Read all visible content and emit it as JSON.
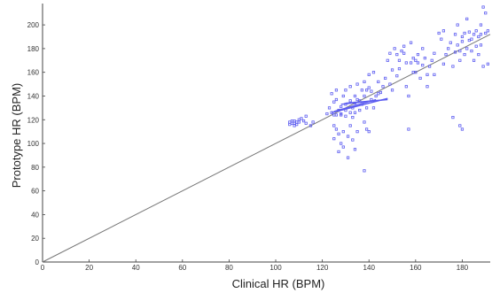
{
  "chart_data": {
    "type": "scatter",
    "xlabel": "Clinical HR (BPM)",
    "ylabel": "Prototype HR (BPM)",
    "xlim": [
      0,
      192
    ],
    "ylim": [
      0,
      218
    ],
    "xticks": [
      0,
      20,
      40,
      60,
      80,
      100,
      120,
      140,
      160,
      180
    ],
    "yticks": [
      0,
      20,
      40,
      60,
      80,
      100,
      120,
      140,
      160,
      180,
      200
    ],
    "grid": false,
    "marker_color": "#5c5cf0",
    "line_color": "#777777",
    "reference_line": {
      "from": [
        0,
        0
      ],
      "to": [
        192,
        192
      ]
    },
    "series": [
      {
        "points": [
          [
            106,
            116
          ],
          [
            106,
            118
          ],
          [
            107,
            117
          ],
          [
            107,
            119
          ],
          [
            108,
            115
          ],
          [
            108,
            117
          ],
          [
            108,
            119
          ],
          [
            109,
            116
          ],
          [
            109,
            118
          ],
          [
            110,
            118
          ],
          [
            110,
            120
          ],
          [
            111,
            121
          ],
          [
            112,
            119
          ],
          [
            113,
            117
          ],
          [
            113,
            123
          ],
          [
            115,
            115
          ],
          [
            116,
            118
          ],
          [
            122,
            125
          ],
          [
            123,
            130
          ],
          [
            124,
            142
          ],
          [
            124,
            126
          ],
          [
            125,
            124
          ],
          [
            125,
            135
          ],
          [
            125,
            115
          ],
          [
            125,
            104
          ],
          [
            126,
            124
          ],
          [
            126,
            137
          ],
          [
            126,
            112
          ],
          [
            126,
            145
          ],
          [
            127,
            93
          ],
          [
            127,
            108
          ],
          [
            127,
            128
          ],
          [
            128,
            125
          ],
          [
            128,
            131
          ],
          [
            128,
            100
          ],
          [
            128,
            124
          ],
          [
            129,
            110
          ],
          [
            129,
            140
          ],
          [
            129,
            97
          ],
          [
            130,
            123
          ],
          [
            130,
            128
          ],
          [
            130,
            133
          ],
          [
            130,
            145
          ],
          [
            131,
            88
          ],
          [
            131,
            106
          ],
          [
            132,
            115
          ],
          [
            132,
            126
          ],
          [
            132,
            136
          ],
          [
            132,
            148
          ],
          [
            133,
            130
          ],
          [
            133,
            122
          ],
          [
            133,
            103
          ],
          [
            134,
            126
          ],
          [
            134,
            95
          ],
          [
            134,
            140
          ],
          [
            134,
            134
          ],
          [
            135,
            137
          ],
          [
            135,
            150
          ],
          [
            135,
            110
          ],
          [
            136,
            136
          ],
          [
            136,
            128
          ],
          [
            137,
            133
          ],
          [
            137,
            145
          ],
          [
            138,
            77
          ],
          [
            138,
            118
          ],
          [
            138,
            140
          ],
          [
            138,
            152
          ],
          [
            139,
            112
          ],
          [
            139,
            130
          ],
          [
            139,
            145
          ],
          [
            140,
            110
          ],
          [
            140,
            147
          ],
          [
            140,
            158
          ],
          [
            141,
            137
          ],
          [
            141,
            144
          ],
          [
            142,
            130
          ],
          [
            142,
            160
          ],
          [
            143,
            140
          ],
          [
            144,
            142
          ],
          [
            144,
            152
          ],
          [
            145,
            143
          ],
          [
            146,
            148
          ],
          [
            147,
            155
          ],
          [
            148,
            170
          ],
          [
            149,
            150
          ],
          [
            149,
            176
          ],
          [
            150,
            162
          ],
          [
            150,
            145
          ],
          [
            151,
            180
          ],
          [
            152,
            175
          ],
          [
            152,
            157
          ],
          [
            153,
            163
          ],
          [
            153,
            170
          ],
          [
            154,
            178
          ],
          [
            155,
            176
          ],
          [
            155,
            182
          ],
          [
            156,
            168
          ],
          [
            156,
            148
          ],
          [
            157,
            140
          ],
          [
            157,
            112
          ],
          [
            158,
            185
          ],
          [
            158,
            168
          ],
          [
            159,
            172
          ],
          [
            159,
            160
          ],
          [
            160,
            160
          ],
          [
            160,
            170
          ],
          [
            161,
            175
          ],
          [
            161,
            168
          ],
          [
            162,
            155
          ],
          [
            163,
            166
          ],
          [
            163,
            180
          ],
          [
            164,
            172
          ],
          [
            165,
            158
          ],
          [
            165,
            148
          ],
          [
            166,
            165
          ],
          [
            167,
            170
          ],
          [
            168,
            176
          ],
          [
            168,
            158
          ],
          [
            170,
            193
          ],
          [
            171,
            188
          ],
          [
            172,
            195
          ],
          [
            172,
            167
          ],
          [
            173,
            175
          ],
          [
            174,
            180
          ],
          [
            175,
            185
          ],
          [
            176,
            122
          ],
          [
            176,
            165
          ],
          [
            177,
            177
          ],
          [
            177,
            192
          ],
          [
            178,
            183
          ],
          [
            178,
            200
          ],
          [
            179,
            115
          ],
          [
            179,
            170
          ],
          [
            179,
            178
          ],
          [
            180,
            186
          ],
          [
            180,
            190
          ],
          [
            180,
            112
          ],
          [
            181,
            193
          ],
          [
            181,
            175
          ],
          [
            182,
            205
          ],
          [
            182,
            180
          ],
          [
            183,
            194
          ],
          [
            183,
            187
          ],
          [
            184,
            178
          ],
          [
            184,
            188
          ],
          [
            185,
            192
          ],
          [
            185,
            170
          ],
          [
            186,
            195
          ],
          [
            186,
            182
          ],
          [
            187,
            190
          ],
          [
            187,
            175
          ],
          [
            188,
            200
          ],
          [
            188,
            192
          ],
          [
            188,
            183
          ],
          [
            189,
            215
          ],
          [
            189,
            165
          ],
          [
            190,
            193
          ],
          [
            190,
            210
          ],
          [
            191,
            195
          ],
          [
            191,
            167
          ]
        ],
        "line_segments": [
          {
            "from": [
              124,
              126
            ],
            "to": [
              148,
              138
            ]
          },
          {
            "from": [
              125,
              127
            ],
            "to": [
              143,
              137
            ]
          },
          {
            "from": [
              128,
              133
            ],
            "to": [
              142,
              136
            ]
          },
          {
            "from": [
              130,
              134
            ],
            "to": [
              148,
              137
            ]
          }
        ]
      }
    ]
  }
}
